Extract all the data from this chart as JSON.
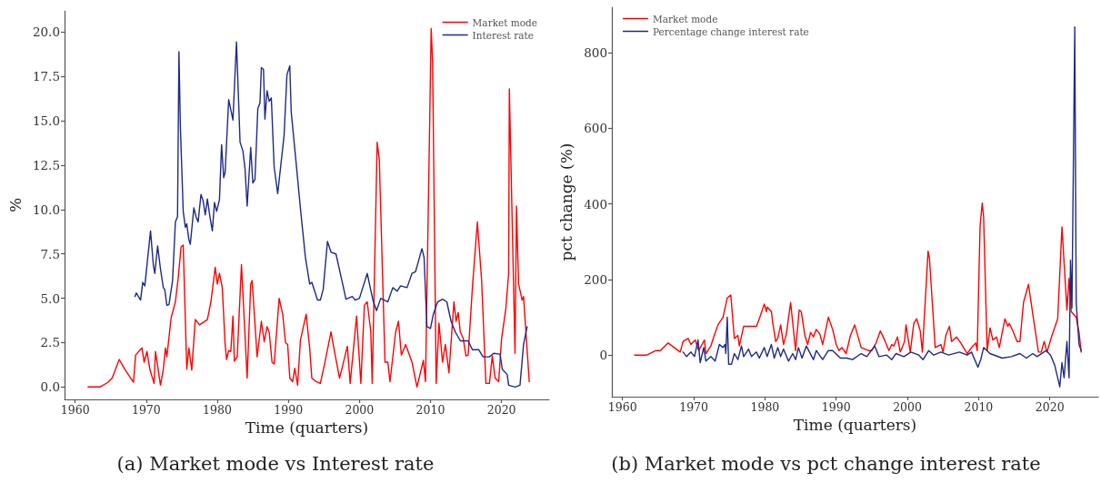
{
  "chart_data": [
    {
      "type": "line",
      "xlabel": "Time (quarters)",
      "ylabel": "%",
      "legend": "top right",
      "grid": false,
      "annotations": [
        "(a) Market mode vs Interest rate"
      ],
      "xlim": [
        1958.5,
        2026.7
      ],
      "xticks": [
        1960,
        1970,
        1980,
        1990,
        2000,
        2010,
        2020
      ],
      "ylim": [
        -0.7,
        21.2
      ],
      "yticks": [
        {
          "value": 0,
          "label": "0.0"
        },
        2.5,
        {
          "value": 5,
          "label": "5.0"
        },
        7.5,
        {
          "value": 10,
          "label": "10.0"
        },
        12.5,
        {
          "value": 15,
          "label": "15.0"
        },
        17.5,
        {
          "value": 20,
          "label": "20.0"
        }
      ],
      "series": [
        {
          "name": "Market mode",
          "color": "#ff0000",
          "x": [
            1961.8,
            1963.5,
            1964.6,
            1965.2,
            1966.2,
            1966.9,
            1968.2,
            1968.5,
            1969.4,
            1969.7,
            1970.1,
            1970.5,
            1971.1,
            1971.3,
            1972.0,
            1972.4,
            1972.7,
            1972.9,
            1973.5,
            1974.1,
            1974.5,
            1974.9,
            1975.2,
            1975.7,
            1976.0,
            1976.4,
            1976.9,
            1977.5,
            1978.6,
            1979.1,
            1979.7,
            1980.0,
            1980.3,
            1980.7,
            1981.1,
            1981.3,
            1981.6,
            1981.9,
            1982.2,
            1982.4,
            1982.8,
            1983.4,
            1984.2,
            1984.7,
            1984.9,
            1985.6,
            1986.2,
            1986.6,
            1987.0,
            1987.3,
            1987.7,
            1988.0,
            1988.7,
            1989.2,
            1989.6,
            1989.9,
            1990.2,
            1990.6,
            1990.9,
            1991.3,
            1991.7,
            1992.5,
            1993.0,
            1993.3,
            1993.9,
            1994.5,
            1995.1,
            1996.0,
            1996.4,
            1997.2,
            1997.7,
            1998.3,
            1998.7,
            1999.6,
            2000.2,
            2000.7,
            2001.1,
            2001.6,
            2001.8,
            2002.5,
            2002.8,
            2003.6,
            2004.0,
            2004.3,
            2005.1,
            2005.5,
            2005.9,
            2006.5,
            2007.4,
            2008.1,
            2009.0,
            2009.3,
            2010.1,
            2010.3,
            2010.8,
            2011.2,
            2011.7,
            2012.1,
            2012.6,
            2013.3,
            2013.6,
            2013.9,
            2014.2,
            2014.6,
            2015.0,
            2015.3,
            2015.9,
            2016.6,
            2017.2,
            2017.8,
            2018.3,
            2018.7,
            2019.1,
            2019.6,
            2020.0,
            2020.6,
            2021.0,
            2021.1,
            2021.9,
            2022.1,
            2022.4,
            2022.9,
            2023.1,
            2023.9
          ],
          "values": [
            0,
            0,
            0.26,
            0.5,
            1.55,
            1.05,
            0.27,
            1.8,
            2.2,
            1.4,
            2.0,
            1.0,
            0.2,
            2.0,
            0.1,
            1.0,
            2.2,
            1.7,
            3.9,
            4.8,
            6.15,
            7.9,
            8.0,
            1.0,
            2.2,
            0.95,
            3.8,
            3.5,
            3.8,
            4.8,
            6.75,
            5.8,
            6.4,
            5.6,
            2.4,
            1.55,
            2.05,
            2.0,
            4.0,
            1.45,
            1.7,
            6.9,
            0.5,
            5.8,
            6.0,
            1.7,
            3.7,
            2.55,
            3.4,
            3.1,
            1.4,
            1.3,
            5.0,
            4.1,
            2.5,
            2.4,
            0.5,
            0.3,
            1.05,
            0.1,
            2.65,
            4.1,
            2.2,
            0.5,
            0.3,
            0.2,
            1.3,
            3.1,
            2.2,
            0.5,
            1.3,
            2.3,
            0.2,
            4.0,
            0.2,
            4.6,
            4.8,
            3.1,
            0.2,
            13.8,
            12.8,
            1.4,
            1.4,
            0.3,
            3.1,
            3.7,
            1.8,
            2.4,
            1.4,
            0,
            1.5,
            0.3,
            20.2,
            18.3,
            0.2,
            3.6,
            1.4,
            2.4,
            0.8,
            4.8,
            3.7,
            4.2,
            3.1,
            2.75,
            1.75,
            1.8,
            5.6,
            9.3,
            6.0,
            0.2,
            0.2,
            1.75,
            0.5,
            0.3,
            2.7,
            4.4,
            6.4,
            16.8,
            1.9,
            10.2,
            5.8,
            4.9,
            5.1,
            0.3
          ]
        },
        {
          "name": "Interest rate",
          "color": "#1c2a86",
          "x": [
            1968.4,
            1968.6,
            1969.2,
            1969.5,
            1969.8,
            1970.6,
            1971.0,
            1971.2,
            1971.6,
            1972.0,
            1972.4,
            1972.6,
            1972.9,
            1973.2,
            1973.7,
            1974.1,
            1974.4,
            1974.6,
            1974.8,
            1975.2,
            1975.5,
            1975.7,
            1976.0,
            1976.2,
            1976.7,
            1977.0,
            1977.3,
            1977.7,
            1978.0,
            1978.3,
            1978.6,
            1979.0,
            1979.3,
            1979.6,
            1979.9,
            1980.3,
            1980.6,
            1980.9,
            1981.1,
            1981.6,
            1982.2,
            1982.7,
            1983.2,
            1983.6,
            1983.9,
            1984.2,
            1984.7,
            1985.0,
            1985.3,
            1985.7,
            1986.0,
            1986.2,
            1986.5,
            1986.7,
            1987.0,
            1987.3,
            1987.6,
            1988.0,
            1988.5,
            1989.4,
            1989.8,
            1990.2,
            1990.4,
            1991.1,
            1991.7,
            1992.4,
            1993.0,
            1993.3,
            1994.1,
            1994.5,
            1994.9,
            1995.5,
            1996.0,
            1996.7,
            1997.7,
            1998.1,
            1999.0,
            1999.4,
            2000.0,
            2001.1,
            2001.9,
            2002.4,
            2003.0,
            2004.0,
            2004.7,
            2005.3,
            2005.8,
            2006.7,
            2007.4,
            2007.9,
            2008.8,
            2009.1,
            2009.5,
            2010.0,
            2010.4,
            2011.0,
            2011.7,
            2012.3,
            2012.9,
            2013.5,
            2014.2,
            2015.3,
            2015.9,
            2016.8,
            2017.4,
            2018.3,
            2018.9,
            2019.8,
            2020.1,
            2020.8,
            2021.0,
            2021.9,
            2022.6,
            2023.1,
            2023.6
          ],
          "values": [
            5.1,
            5.3,
            4.9,
            5.9,
            5.7,
            8.8,
            6.85,
            6.4,
            7.95,
            6.65,
            5.6,
            5.5,
            4.6,
            4.65,
            6.0,
            9.3,
            9.6,
            18.9,
            14.7,
            9.9,
            9.0,
            9.2,
            8.3,
            8.05,
            10.1,
            9.6,
            9.3,
            10.85,
            10.5,
            9.7,
            10.6,
            9.5,
            8.8,
            10.4,
            9.9,
            10.55,
            13.65,
            11.8,
            12.1,
            16.2,
            15.05,
            19.45,
            13.8,
            13.3,
            12.3,
            10.2,
            13.5,
            11.5,
            11.7,
            15.7,
            16.0,
            18.0,
            17.9,
            15.1,
            16.7,
            16.1,
            16.3,
            12.4,
            10.9,
            14.2,
            17.6,
            18.1,
            15.5,
            12.6,
            10.05,
            7.3,
            5.8,
            5.9,
            4.9,
            4.9,
            5.5,
            8.2,
            7.6,
            7.5,
            5.7,
            4.95,
            5.1,
            4.9,
            5.0,
            6.4,
            4.9,
            4.3,
            5.0,
            4.8,
            5.6,
            5.4,
            5.7,
            5.6,
            6.4,
            6.5,
            7.8,
            7.3,
            3.4,
            3.3,
            4.1,
            4.8,
            4.95,
            4.8,
            3.7,
            3.1,
            2.6,
            2.6,
            2.1,
            2.1,
            1.7,
            1.7,
            1.9,
            1.85,
            1.0,
            0.7,
            0.1,
            0,
            0.1,
            2.4,
            3.4
          ]
        }
      ]
    },
    {
      "type": "line",
      "xlabel": "Time (quarters)",
      "ylabel": "pct change (%)",
      "legend": "top left",
      "grid": false,
      "annotations": [
        "(b) Market mode vs pct change interest rate"
      ],
      "xlim": [
        1958.5,
        2026.8
      ],
      "xticks": [
        1960,
        1970,
        1980,
        1990,
        2000,
        2010,
        2020
      ],
      "ylim": [
        -110,
        920
      ],
      "yticks": [
        0,
        200,
        400,
        600,
        800
      ],
      "series": [
        {
          "name": "Market mode",
          "color": "#ff0000",
          "x": [
            1961.7,
            1963.4,
            1964.7,
            1965.3,
            1966.4,
            1968.1,
            1968.5,
            1969.2,
            1969.6,
            1970.2,
            1970.7,
            1971.5,
            1971.7,
            1972.4,
            1972.8,
            1973.4,
            1974.1,
            1974.7,
            1975.2,
            1975.7,
            1976.2,
            1976.4,
            1977.0,
            1977.6,
            1978.8,
            1979.2,
            1979.9,
            1980.2,
            1980.3,
            1980.9,
            1981.1,
            1981.5,
            1981.8,
            1982.2,
            1982.6,
            1983.0,
            1983.6,
            1984.3,
            1984.8,
            1985.1,
            1985.6,
            1986.0,
            1986.4,
            1986.8,
            1987.2,
            1987.7,
            1988.1,
            1988.9,
            1989.5,
            1990.0,
            1990.4,
            1990.8,
            1991.4,
            1992.0,
            1992.6,
            1993.5,
            1994.5,
            1995.0,
            1995.6,
            1996.2,
            1996.7,
            1997.4,
            1997.8,
            1998.1,
            1998.6,
            1999.0,
            1999.6,
            1999.8,
            2000.4,
            2000.9,
            2001.3,
            2001.8,
            2002.1,
            2002.9,
            2003.1,
            2003.9,
            2004.7,
            2005.0,
            2005.4,
            2005.9,
            2006.2,
            2006.9,
            2007.5,
            2008.4,
            2009.0,
            2009.6,
            2009.8,
            2010.2,
            2010.5,
            2010.7,
            2011.2,
            2011.6,
            2012.0,
            2012.5,
            2012.9,
            2013.7,
            2014.1,
            2014.3,
            2014.8,
            2015.4,
            2015.8,
            2016.3,
            2017.0,
            2017.7,
            2018.4,
            2018.8,
            2019.2,
            2019.6,
            2020.3,
            2021.1,
            2021.7,
            2022.4,
            2022.7,
            2023.0,
            2023.7,
            2024.1,
            2024.4
          ],
          "values": [
            0,
            0,
            12,
            12,
            32,
            8,
            36,
            44,
            28,
            40,
            12,
            40,
            4,
            24,
            48,
            80,
            100,
            151,
            159,
            44,
            52,
            24,
            76,
            76,
            76,
            96,
            135,
            115,
            127,
            115,
            84,
            36,
            44,
            80,
            28,
            56,
            139,
            12,
            119,
            115,
            52,
            28,
            60,
            48,
            68,
            56,
            28,
            100,
            68,
            28,
            12,
            20,
            4,
            52,
            80,
            20,
            12,
            12,
            32,
            64,
            44,
            12,
            28,
            24,
            48,
            8,
            36,
            80,
            8,
            84,
            96,
            64,
            8,
            275,
            255,
            20,
            28,
            8,
            52,
            76,
            36,
            48,
            32,
            4,
            20,
            32,
            12,
            339,
            402,
            366,
            12,
            72,
            40,
            48,
            20,
            96,
            76,
            84,
            64,
            36,
            36,
            139,
            187,
            96,
            8,
            8,
            36,
            8,
            52,
            96,
            339,
            119,
            203,
            115,
            100,
            60,
            8
          ]
        },
        {
          "name": "Percentage change interest rate",
          "color": "#1c2a86",
          "x": [
            1968.5,
            1969.0,
            1969.6,
            1970.1,
            1970.6,
            1970.9,
            1971.4,
            1971.7,
            1972.4,
            1973.0,
            1973.6,
            1974.1,
            1974.4,
            1974.5,
            1974.7,
            1974.9,
            1975.3,
            1975.7,
            1976.2,
            1976.7,
            1977.0,
            1977.7,
            1978.1,
            1978.8,
            1979.2,
            1979.9,
            1980.3,
            1980.9,
            1981.3,
            1981.8,
            1982.2,
            1982.6,
            1983.3,
            1983.9,
            1984.3,
            1984.7,
            1985.2,
            1985.8,
            1986.8,
            1987.2,
            1988.1,
            1988.9,
            1989.5,
            1990.6,
            1991.5,
            1992.3,
            1993.5,
            1994.3,
            1995.4,
            1996.0,
            1997.1,
            1997.8,
            1998.4,
            1999.5,
            2000.5,
            2001.6,
            2002.2,
            2003.0,
            2003.7,
            2004.7,
            2005.8,
            2007.3,
            2008.4,
            2009.0,
            2009.9,
            2010.3,
            2010.7,
            2011.6,
            2013.3,
            2014.6,
            2015.8,
            2016.7,
            2017.6,
            2018.2,
            2019.5,
            2020.1,
            2020.7,
            2021.4,
            2021.7,
            2022.0,
            2022.4,
            2022.7,
            2022.9,
            2023.1,
            2023.5,
            2023.7,
            2024.1,
            2024.4
          ],
          "values": [
            8,
            -4,
            8,
            -4,
            40,
            -20,
            20,
            -16,
            -4,
            -16,
            28,
            20,
            28,
            4,
            100,
            -24,
            -24,
            4,
            -12,
            24,
            -4,
            16,
            -4,
            8,
            -8,
            20,
            -4,
            28,
            -8,
            20,
            -4,
            16,
            -16,
            4,
            -12,
            20,
            -8,
            24,
            -12,
            12,
            -12,
            12,
            12,
            -8,
            -8,
            -12,
            4,
            -4,
            24,
            -4,
            0,
            -12,
            4,
            -4,
            8,
            0,
            -12,
            12,
            0,
            8,
            0,
            8,
            0,
            8,
            -32,
            -12,
            20,
            4,
            -8,
            -4,
            4,
            -8,
            4,
            -4,
            12,
            0,
            -28,
            -84,
            -20,
            -60,
            36,
            -60,
            251,
            124,
            868,
            139,
            28,
            12
          ]
        }
      ]
    }
  ]
}
